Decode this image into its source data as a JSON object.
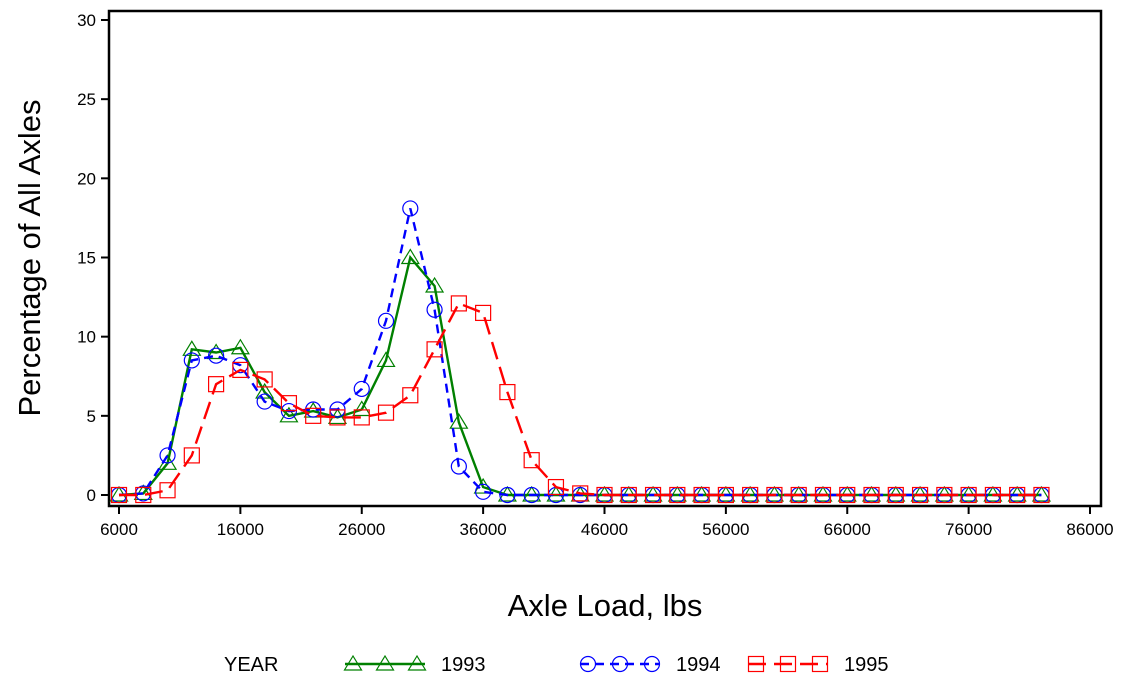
{
  "chart_data": {
    "type": "line",
    "xlabel": "Axle Load, lbs",
    "ylabel": "Percentage of All Axles",
    "xlim": [
      6000,
      86000
    ],
    "ylim": [
      0,
      30
    ],
    "xticks": [
      "6000",
      "16000",
      "26000",
      "36000",
      "46000",
      "56000",
      "66000",
      "76000",
      "86000"
    ],
    "yticks": [
      "0",
      "5",
      "10",
      "15",
      "20",
      "25",
      "30"
    ],
    "grid": false,
    "legend": {
      "title": "YEAR",
      "position": "bottom"
    },
    "x": [
      6000,
      8000,
      10000,
      12000,
      14000,
      16000,
      18000,
      20000,
      22000,
      24000,
      26000,
      28000,
      30000,
      32000,
      34000,
      36000,
      38000,
      40000,
      42000,
      44000,
      46000,
      48000,
      50000,
      52000,
      54000,
      56000,
      58000,
      60000,
      62000,
      64000,
      66000,
      68000,
      70000,
      72000,
      74000,
      76000,
      78000,
      80000,
      82000
    ],
    "series": [
      {
        "name": "1993",
        "color": "#008000",
        "marker": "triangle",
        "dash": "solid",
        "values": [
          0,
          0.1,
          2.0,
          9.2,
          9.0,
          9.3,
          6.5,
          5.0,
          5.3,
          4.9,
          5.4,
          8.5,
          15.0,
          13.2,
          4.6,
          0.5,
          0,
          0,
          0,
          0,
          0,
          0,
          0,
          0,
          0,
          0,
          0,
          0,
          0,
          0,
          0,
          0,
          0,
          0,
          0,
          0,
          0,
          0,
          0
        ]
      },
      {
        "name": "1994",
        "color": "#0000ff",
        "marker": "circle",
        "dash": "short",
        "values": [
          0,
          0.1,
          2.5,
          8.5,
          8.8,
          8.2,
          5.9,
          5.3,
          5.4,
          5.4,
          6.7,
          11.0,
          18.1,
          11.7,
          1.8,
          0.2,
          0,
          0,
          0,
          0,
          0,
          0,
          0,
          0,
          0,
          0,
          0,
          0,
          0,
          0,
          0,
          0,
          0,
          0,
          0,
          0,
          0,
          0,
          0
        ]
      },
      {
        "name": "1995",
        "color": "#ff0000",
        "marker": "square",
        "dash": "long",
        "values": [
          0,
          0,
          0.3,
          2.5,
          7.0,
          7.9,
          7.3,
          5.8,
          5.0,
          4.9,
          4.9,
          5.2,
          6.3,
          9.2,
          12.1,
          11.5,
          6.5,
          2.2,
          0.5,
          0.1,
          0,
          0,
          0,
          0,
          0,
          0,
          0,
          0,
          0,
          0,
          0,
          0,
          0,
          0,
          0,
          0,
          0,
          0,
          0
        ]
      }
    ]
  }
}
